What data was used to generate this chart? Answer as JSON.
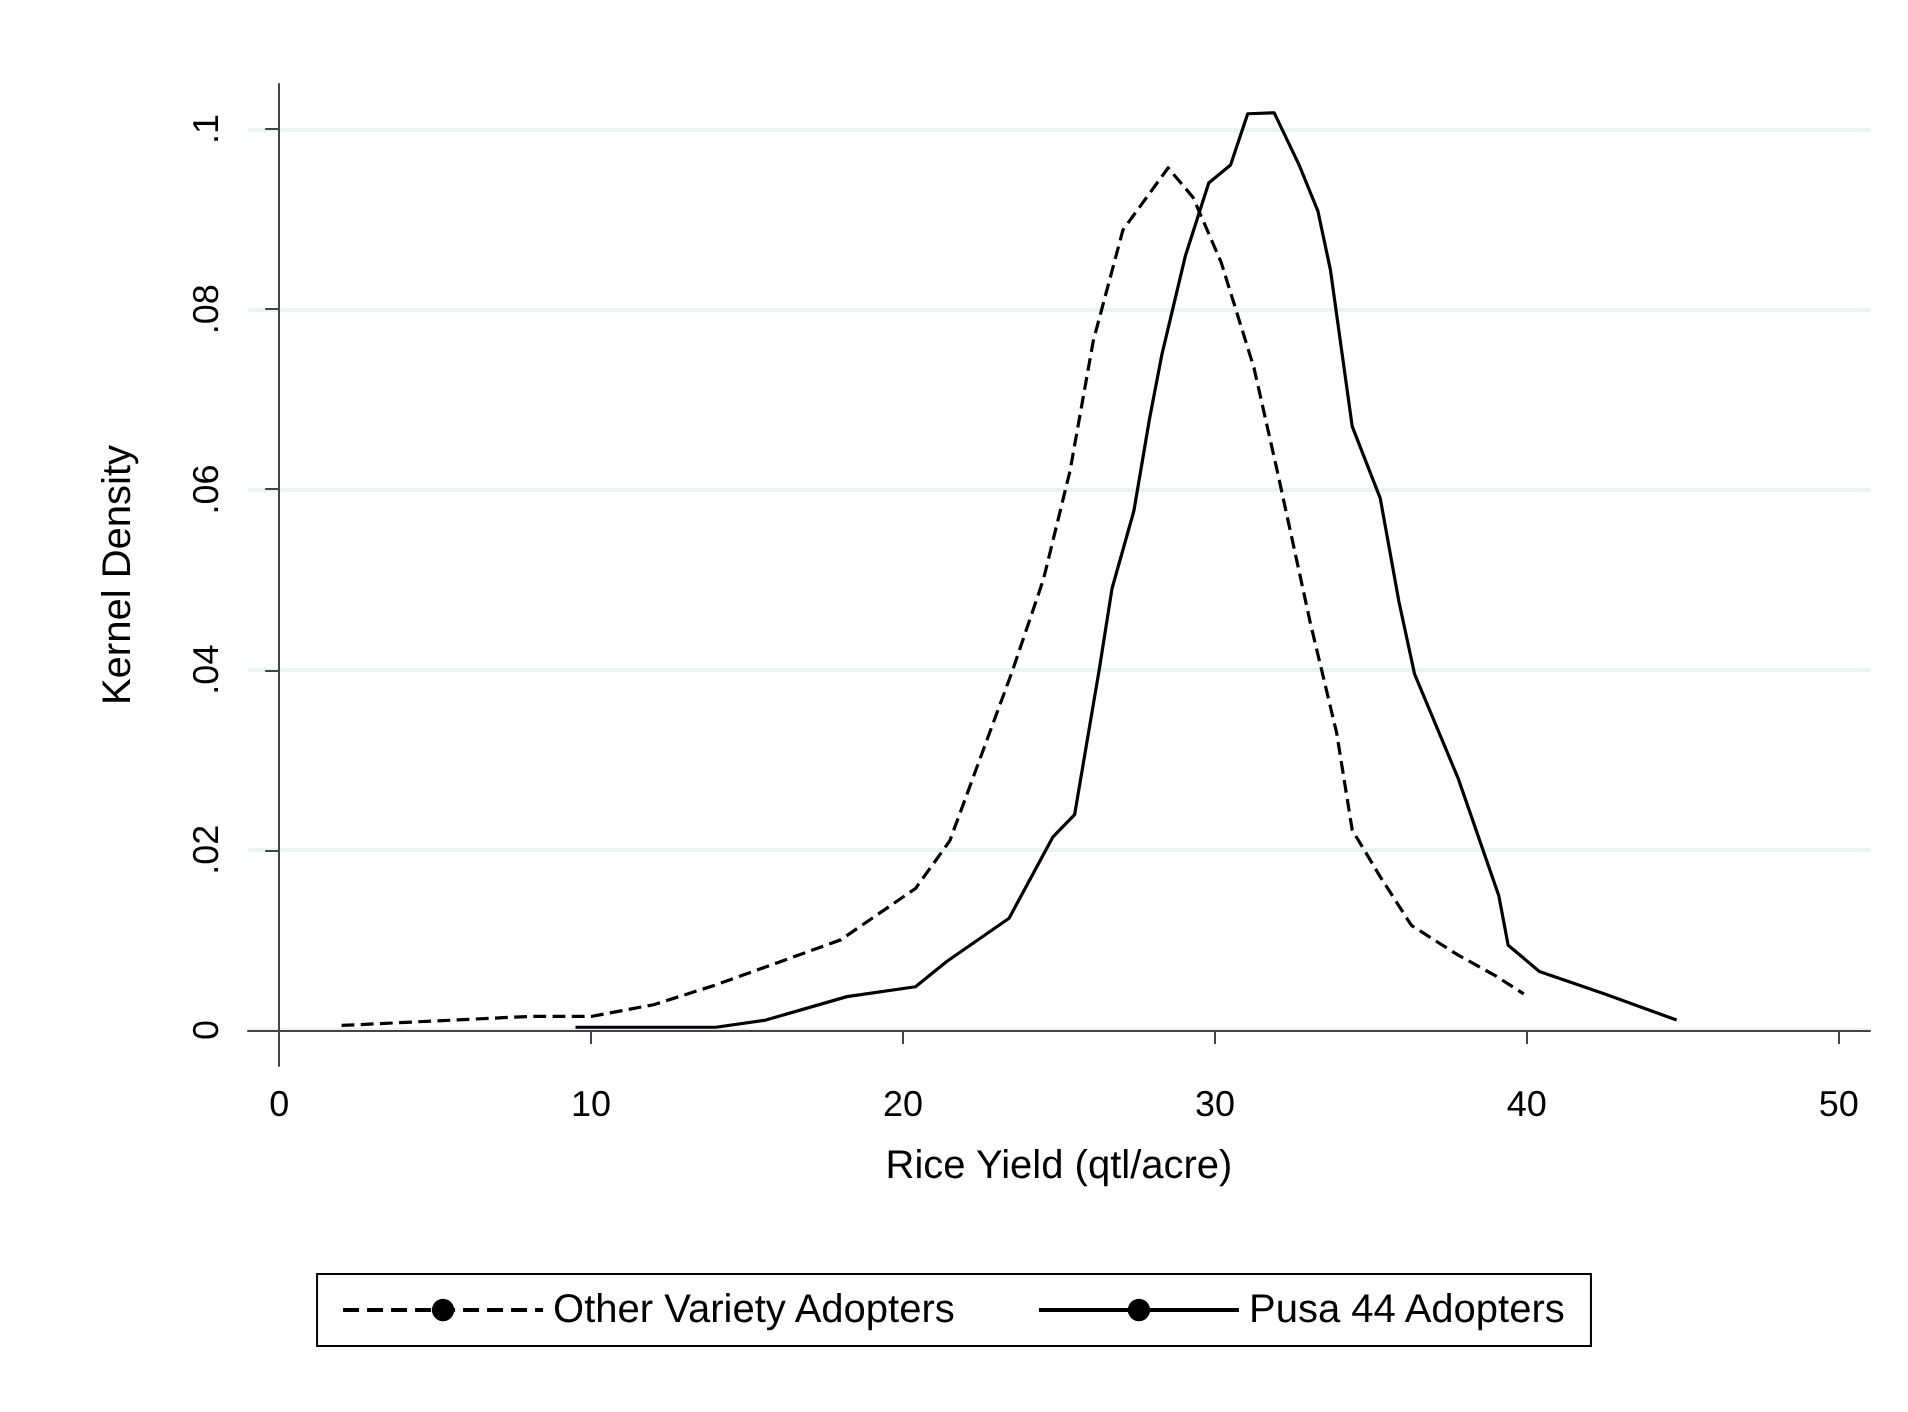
{
  "chart_data": {
    "type": "line",
    "xlabel": "Rice Yield (qtl/acre)",
    "ylabel": "Kernel Density",
    "xlim": [
      -1,
      51
    ],
    "xticks": [
      0,
      10,
      20,
      30,
      40,
      50
    ],
    "ylim": [
      -0.004,
      0.105
    ],
    "yticks": [
      0,
      {
        "value": 0.02,
        "label": ".02"
      },
      {
        "value": 0.04,
        "label": ".04"
      },
      {
        "value": 0.06,
        "label": ".06"
      },
      {
        "value": 0.08,
        "label": ".08"
      },
      {
        "value": 0.1,
        "label": ".1"
      }
    ],
    "grid": "y",
    "legend": "bottom",
    "marker": "none",
    "series": [
      {
        "name": "Other Variety Adopters",
        "color": "#000000",
        "line_style": "dashed",
        "x": [
          2,
          5,
          8,
          10,
          12,
          14,
          16,
          18,
          20.4,
          21.5,
          23.5,
          24.5,
          25.35,
          26.1,
          27.05,
          28.5,
          29.3,
          30.2,
          31.25,
          32,
          33.05,
          33.9,
          34.4,
          35.3,
          36.3,
          37.8,
          39,
          39.9
        ],
        "values": [
          0.0005,
          0.001,
          0.0015,
          0.0015,
          0.0028,
          0.005,
          0.0075,
          0.01,
          0.0157,
          0.021,
          0.0398,
          0.05,
          0.062,
          0.0765,
          0.0888,
          0.0957,
          0.0924,
          0.0852,
          0.0735,
          0.062,
          0.0453,
          0.033,
          0.0222,
          0.017,
          0.0116,
          0.0083,
          0.006,
          0.004
        ]
      },
      {
        "name": "Pusa 44 Adopters",
        "color": "#000000",
        "line_style": "solid",
        "x": [
          9.5,
          12,
          14,
          15.6,
          18.2,
          20.4,
          21.4,
          23.4,
          24.8,
          25.5,
          26.3,
          26.7,
          27.4,
          27.9,
          28.3,
          29.05,
          29.8,
          30.5,
          31.05,
          31.9,
          32.7,
          33.3,
          33.7,
          34.4,
          35.3,
          35.9,
          36.4,
          37.8,
          39.1,
          39.4,
          40.4,
          42.5,
          44.8
        ],
        "values": [
          0.0003,
          0.0003,
          0.0003,
          0.0011,
          0.0037,
          0.0048,
          0.0076,
          0.0124,
          0.0214,
          0.0239,
          0.0402,
          0.049,
          0.0576,
          0.0678,
          0.075,
          0.0859,
          0.094,
          0.096,
          0.1017,
          0.1018,
          0.096,
          0.0909,
          0.0844,
          0.067,
          0.059,
          0.0475,
          0.0395,
          0.0279,
          0.0149,
          0.0094,
          0.0065,
          0.004,
          0.0011
        ]
      }
    ]
  }
}
